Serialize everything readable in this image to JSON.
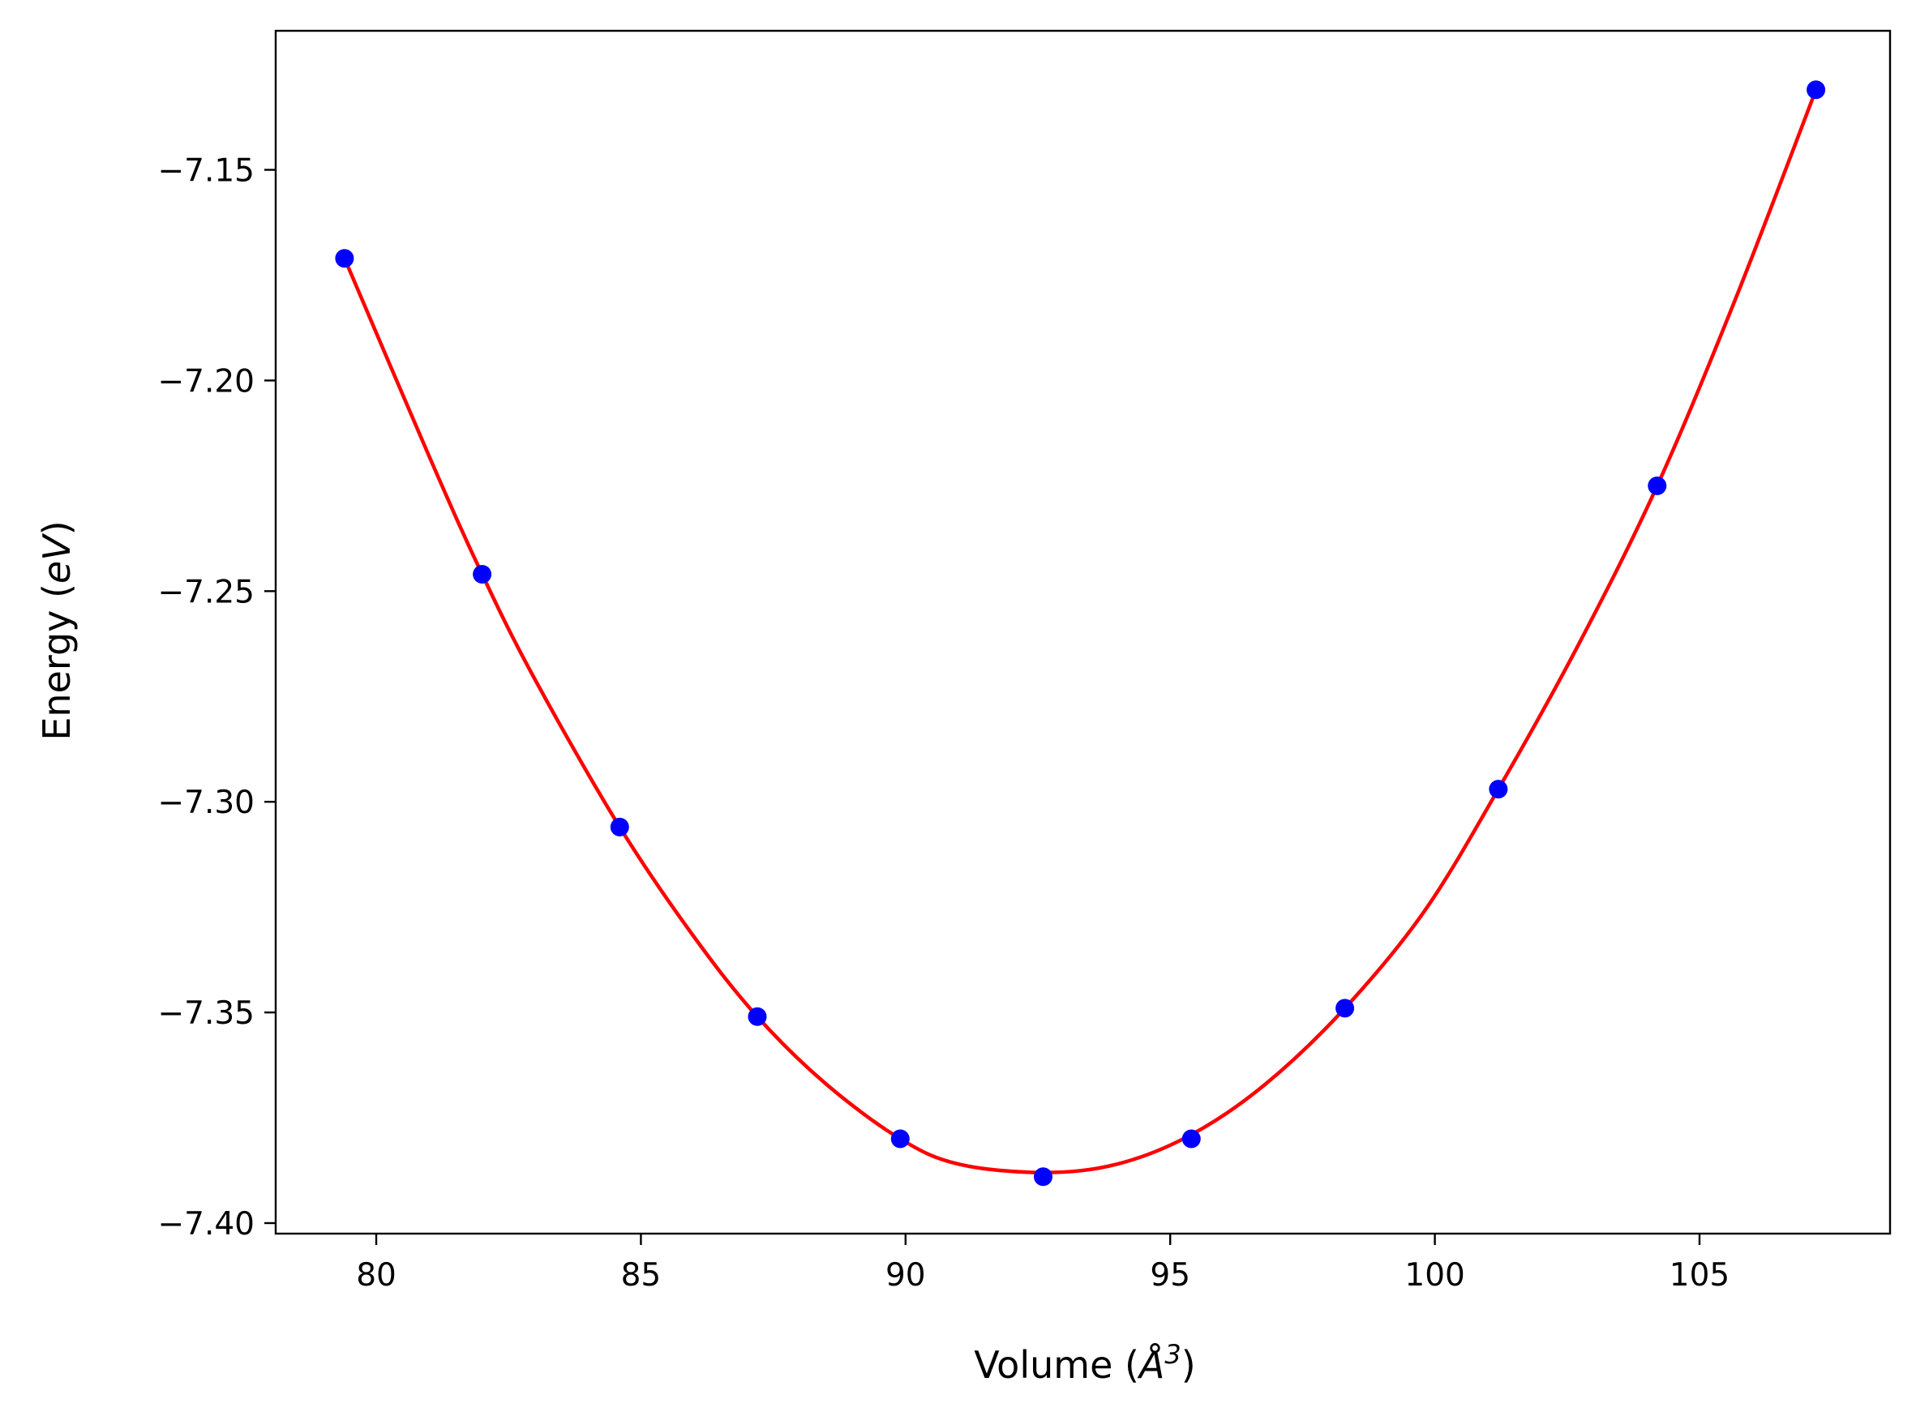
{
  "chart_data": {
    "type": "line",
    "title": "",
    "xlabel_main": "Volume (",
    "xlabel_symbol": "Å",
    "xlabel_sup": "3",
    "xlabel_close": ")",
    "ylabel_main": "Energy (",
    "ylabel_unit": "eV",
    "ylabel_close": ")",
    "xlim": [
      78.1,
      108.6
    ],
    "ylim": [
      -7.4025,
      -7.117
    ],
    "x_ticks": [
      80,
      85,
      90,
      95,
      100,
      105
    ],
    "x_tick_labels": [
      "80",
      "85",
      "90",
      "95",
      "100",
      "105"
    ],
    "y_ticks": [
      -7.15,
      -7.2,
      -7.25,
      -7.3,
      -7.35,
      -7.4
    ],
    "y_tick_labels": [
      "−7.15",
      "−7.20",
      "−7.25",
      "−7.30",
      "−7.35",
      "−7.40"
    ],
    "grid": false,
    "series": [
      {
        "kind": "scatter",
        "color": "#0000ff",
        "x": [
          79.4,
          82.0,
          84.6,
          87.2,
          89.9,
          92.6,
          95.4,
          98.3,
          101.2,
          104.2,
          107.2
        ],
        "y": [
          -7.171,
          -7.246,
          -7.306,
          -7.351,
          -7.38,
          -7.389,
          -7.38,
          -7.349,
          -7.297,
          -7.225,
          -7.131
        ]
      },
      {
        "kind": "line",
        "color": "#ff0000",
        "x": [
          79.4,
          81.0,
          82.0,
          83.0,
          84.6,
          86.0,
          87.2,
          88.5,
          89.9,
          91.0,
          92.6,
          94.0,
          95.4,
          96.8,
          98.3,
          99.8,
          101.2,
          102.7,
          104.2,
          105.7,
          107.2
        ],
        "y": [
          -7.171,
          -7.218,
          -7.246,
          -7.271,
          -7.306,
          -7.332,
          -7.351,
          -7.367,
          -7.38,
          -7.386,
          -7.388,
          -7.386,
          -7.379,
          -7.367,
          -7.349,
          -7.326,
          -7.297,
          -7.263,
          -7.225,
          -7.18,
          -7.131
        ]
      }
    ]
  }
}
